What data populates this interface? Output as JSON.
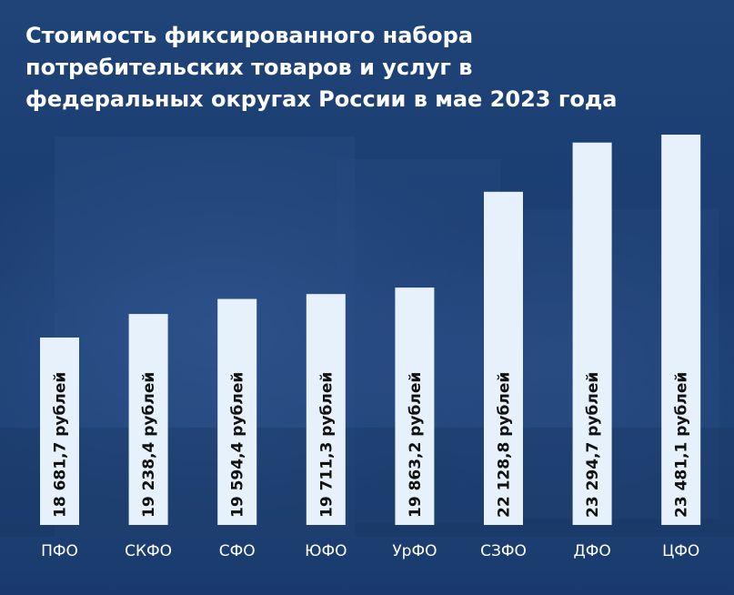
{
  "chart_data": {
    "type": "bar",
    "title_lines": [
      "Стоимость фиксированного набора",
      "потребительских товаров и услуг в",
      "федеральных округах России в мае 2023 года"
    ],
    "categories": [
      "ПФО",
      "СКФО",
      "СФО",
      "ЮФО",
      "УрФО",
      "СЗФО",
      "ДФО",
      "ЦФО"
    ],
    "values": [
      18681.7,
      19238.4,
      19594.4,
      19711.3,
      19863.2,
      22128.8,
      23294.7,
      23481.1
    ],
    "value_labels": [
      "18 681,7 рублей",
      "19 238,4 рублей",
      "19 594,4 рублей",
      "19 711,3 рублей",
      "19 863,2 рублей",
      "22 128,8 рублей",
      "23 294,7 рублей",
      "23 481,1 рублей"
    ],
    "orientation": "vertical",
    "bar_color": "#e6f1fb",
    "background_color": "#1d3f74",
    "grid": false,
    "legend": "none"
  }
}
